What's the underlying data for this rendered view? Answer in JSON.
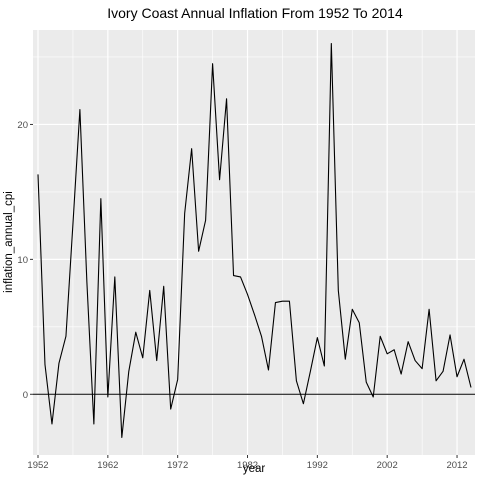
{
  "chart_data": {
    "type": "line",
    "title": "Ivory Coast Annual Inflation From 1952 To 2014",
    "xlabel": "year",
    "ylabel": "inflation_annual_cpi",
    "xlim": [
      1952,
      2014
    ],
    "ylim": [
      -4.5,
      27.0
    ],
    "xticks": [
      1952,
      1962,
      1972,
      1982,
      1992,
      2002,
      2012
    ],
    "yticks": [
      0,
      10,
      20
    ],
    "reference_line_y": 0,
    "grid": true,
    "panel_background": "#ebebeb",
    "grid_color": "#ffffff",
    "line_color": "#000000",
    "series": [
      {
        "x": [
          1952,
          1953,
          1954,
          1955,
          1956,
          1957,
          1958,
          1959,
          1960,
          1961,
          1962,
          1963,
          1964,
          1965,
          1966,
          1967,
          1968,
          1969,
          1970,
          1971,
          1972,
          1973,
          1974,
          1975,
          1976,
          1977,
          1978,
          1979,
          1980,
          1981,
          1982,
          1983,
          1984,
          1985,
          1986,
          1987,
          1988,
          1989,
          1990,
          1991,
          1992,
          1993,
          1994,
          1995,
          1996,
          1997,
          1998,
          1999,
          2000,
          2001,
          2002,
          2003,
          2004,
          2005,
          2006,
          2007,
          2008,
          2009,
          2010,
          2011,
          2012,
          2013,
          2014
        ],
        "y": [
          16.3,
          2.2,
          -2.2,
          2.3,
          4.3,
          12.6,
          21.1,
          8.3,
          -2.2,
          14.5,
          -0.2,
          8.7,
          -3.2,
          1.7,
          4.6,
          2.7,
          7.7,
          2.5,
          8.0,
          -1.1,
          1.1,
          13.4,
          18.2,
          10.6,
          12.9,
          24.5,
          15.9,
          21.9,
          8.8,
          8.7,
          7.4,
          5.9,
          4.3,
          1.8,
          6.8,
          6.9,
          6.9,
          1.0,
          -0.7,
          1.7,
          4.2,
          2.1,
          26.0,
          7.7,
          2.6,
          6.3,
          5.3,
          0.9,
          -0.2,
          4.3,
          3.0,
          3.3,
          1.5,
          3.9,
          2.5,
          1.9,
          6.3,
          1.0,
          1.7,
          4.4,
          1.3,
          2.6,
          0.5
        ]
      }
    ]
  }
}
